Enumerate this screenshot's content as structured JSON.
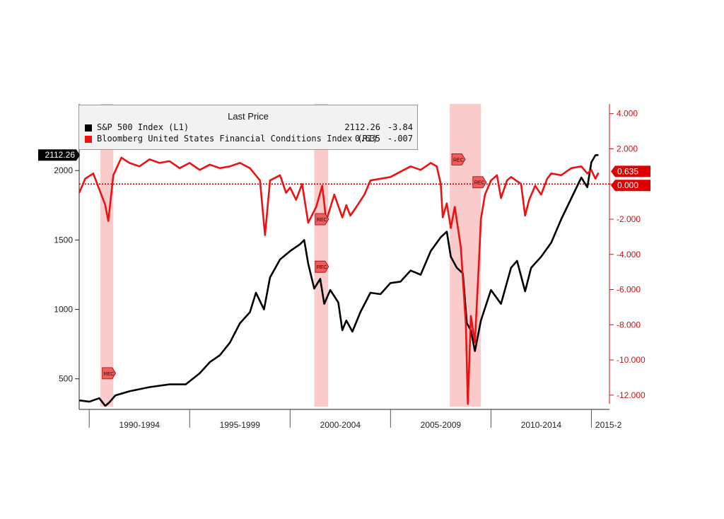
{
  "legend": {
    "title": "Last Price",
    "rows": [
      {
        "name": "S&P 500 Index  (L1)",
        "value": "2112.26",
        "change": "-3.84",
        "color": "#000000"
      },
      {
        "name": "Bloomberg United States Financial Conditions Index  (R1)",
        "value": "0.635",
        "change": "-.007",
        "color": "#ee1111"
      }
    ]
  },
  "chart_data": {
    "type": "line",
    "x_range": [
      1989.5,
      2015.9
    ],
    "x_tick_labels": [
      "1990-1994",
      "1995-1999",
      "2000-2004",
      "2005-2009",
      "2010-2014",
      "2015-2"
    ],
    "left_axis": {
      "range": [
        300,
        2480
      ],
      "ticks": [
        500,
        1000,
        1500,
        2000
      ],
      "last_value_label": "2112.26"
    },
    "right_axis": {
      "range": [
        -12.65,
        4.55
      ],
      "ticks": [
        "4.000",
        "2.000",
        "0.000",
        "-2.000",
        "-4.000",
        "-6.000",
        "-8.000",
        "-10.000",
        "-12.000"
      ],
      "tick_values": [
        4,
        2,
        0,
        -2,
        -4,
        -6,
        -8,
        -10,
        -12
      ],
      "last_value_label": "0.635",
      "reference_label": "0.000",
      "reference_value": 0
    },
    "recession_bands": [
      [
        1990.55,
        1991.2
      ],
      [
        2001.2,
        2001.9
      ],
      [
        2007.95,
        2009.5
      ]
    ],
    "recession_marker_label": "REC",
    "series": [
      {
        "name": "S&P 500 Index  (L1)",
        "axis": "left",
        "color": "#000000",
        "points": [
          [
            1989.5,
            345
          ],
          [
            1990.0,
            335
          ],
          [
            1990.5,
            360
          ],
          [
            1990.8,
            305
          ],
          [
            1991.0,
            330
          ],
          [
            1991.3,
            380
          ],
          [
            1992.0,
            410
          ],
          [
            1993.0,
            440
          ],
          [
            1994.0,
            460
          ],
          [
            1994.8,
            460
          ],
          [
            1995.5,
            540
          ],
          [
            1996.0,
            620
          ],
          [
            1996.5,
            670
          ],
          [
            1997.0,
            760
          ],
          [
            1997.5,
            900
          ],
          [
            1998.0,
            980
          ],
          [
            1998.3,
            1120
          ],
          [
            1998.7,
            1000
          ],
          [
            1999.0,
            1230
          ],
          [
            1999.5,
            1360
          ],
          [
            2000.0,
            1420
          ],
          [
            2000.5,
            1470
          ],
          [
            2000.7,
            1500
          ],
          [
            2000.9,
            1330
          ],
          [
            2001.2,
            1150
          ],
          [
            2001.5,
            1220
          ],
          [
            2001.7,
            1040
          ],
          [
            2002.0,
            1140
          ],
          [
            2002.4,
            1050
          ],
          [
            2002.6,
            850
          ],
          [
            2002.8,
            920
          ],
          [
            2003.1,
            840
          ],
          [
            2003.5,
            980
          ],
          [
            2004.0,
            1120
          ],
          [
            2004.5,
            1110
          ],
          [
            2005.0,
            1190
          ],
          [
            2005.5,
            1200
          ],
          [
            2006.0,
            1280
          ],
          [
            2006.5,
            1250
          ],
          [
            2007.0,
            1420
          ],
          [
            2007.5,
            1520
          ],
          [
            2007.8,
            1560
          ],
          [
            2008.0,
            1380
          ],
          [
            2008.3,
            1300
          ],
          [
            2008.6,
            1260
          ],
          [
            2008.8,
            900
          ],
          [
            2009.0,
            850
          ],
          [
            2009.2,
            700
          ],
          [
            2009.5,
            920
          ],
          [
            2010.0,
            1140
          ],
          [
            2010.5,
            1040
          ],
          [
            2011.0,
            1300
          ],
          [
            2011.3,
            1350
          ],
          [
            2011.7,
            1130
          ],
          [
            2012.0,
            1300
          ],
          [
            2012.5,
            1380
          ],
          [
            2013.0,
            1480
          ],
          [
            2013.5,
            1650
          ],
          [
            2014.0,
            1800
          ],
          [
            2014.5,
            1950
          ],
          [
            2014.8,
            1880
          ],
          [
            2015.0,
            2060
          ],
          [
            2015.2,
            2110
          ],
          [
            2015.35,
            2112.26
          ]
        ]
      },
      {
        "name": "Bloomberg United States Financial Conditions Index  (R1)",
        "axis": "right",
        "color": "#ee1111",
        "points": [
          [
            1989.5,
            -0.5
          ],
          [
            1989.8,
            0.3
          ],
          [
            1990.2,
            0.6
          ],
          [
            1990.5,
            -0.3
          ],
          [
            1990.8,
            -1.2
          ],
          [
            1990.95,
            -2.1
          ],
          [
            1991.2,
            0.5
          ],
          [
            1991.6,
            1.5
          ],
          [
            1992.0,
            1.2
          ],
          [
            1992.5,
            1.0
          ],
          [
            1993.0,
            1.4
          ],
          [
            1993.5,
            1.2
          ],
          [
            1994.0,
            1.3
          ],
          [
            1994.5,
            0.9
          ],
          [
            1995.0,
            1.2
          ],
          [
            1995.5,
            0.8
          ],
          [
            1996.0,
            1.1
          ],
          [
            1996.5,
            0.9
          ],
          [
            1997.0,
            1.0
          ],
          [
            1997.5,
            1.2
          ],
          [
            1998.0,
            0.9
          ],
          [
            1998.5,
            0.2
          ],
          [
            1998.75,
            -2.9
          ],
          [
            1999.0,
            0.2
          ],
          [
            1999.5,
            0.5
          ],
          [
            1999.8,
            -0.5
          ],
          [
            2000.0,
            -0.2
          ],
          [
            2000.3,
            -0.9
          ],
          [
            2000.6,
            0.0
          ],
          [
            2000.9,
            -2.2
          ],
          [
            2001.3,
            -1.3
          ],
          [
            2001.6,
            -0.1
          ],
          [
            2001.8,
            -2.1
          ],
          [
            2002.2,
            -0.6
          ],
          [
            2002.6,
            -1.9
          ],
          [
            2002.8,
            -1.2
          ],
          [
            2003.0,
            -1.8
          ],
          [
            2003.3,
            -1.3
          ],
          [
            2003.7,
            -0.6
          ],
          [
            2004.0,
            0.2
          ],
          [
            2004.5,
            0.3
          ],
          [
            2005.0,
            0.4
          ],
          [
            2005.5,
            0.7
          ],
          [
            2006.0,
            1.0
          ],
          [
            2006.5,
            0.8
          ],
          [
            2007.0,
            1.2
          ],
          [
            2007.3,
            1.0
          ],
          [
            2007.5,
            0.0
          ],
          [
            2007.6,
            -1.9
          ],
          [
            2007.8,
            -1.1
          ],
          [
            2008.0,
            -2.5
          ],
          [
            2008.2,
            -1.3
          ],
          [
            2008.5,
            -3.6
          ],
          [
            2008.75,
            -8.0
          ],
          [
            2008.85,
            -12.5
          ],
          [
            2009.0,
            -7.5
          ],
          [
            2009.2,
            -9.0
          ],
          [
            2009.4,
            -4.5
          ],
          [
            2009.5,
            -2.0
          ],
          [
            2009.7,
            -0.6
          ],
          [
            2010.0,
            0.2
          ],
          [
            2010.3,
            0.5
          ],
          [
            2010.5,
            -0.8
          ],
          [
            2010.8,
            0.2
          ],
          [
            2011.0,
            0.4
          ],
          [
            2011.5,
            0.0
          ],
          [
            2011.7,
            -1.8
          ],
          [
            2011.9,
            -0.9
          ],
          [
            2012.2,
            -0.1
          ],
          [
            2012.5,
            -0.6
          ],
          [
            2012.8,
            0.3
          ],
          [
            2013.0,
            0.6
          ],
          [
            2013.5,
            0.5
          ],
          [
            2014.0,
            0.9
          ],
          [
            2014.5,
            1.0
          ],
          [
            2014.8,
            0.6
          ],
          [
            2015.0,
            0.8
          ],
          [
            2015.2,
            0.3
          ],
          [
            2015.35,
            0.635
          ]
        ]
      }
    ]
  }
}
